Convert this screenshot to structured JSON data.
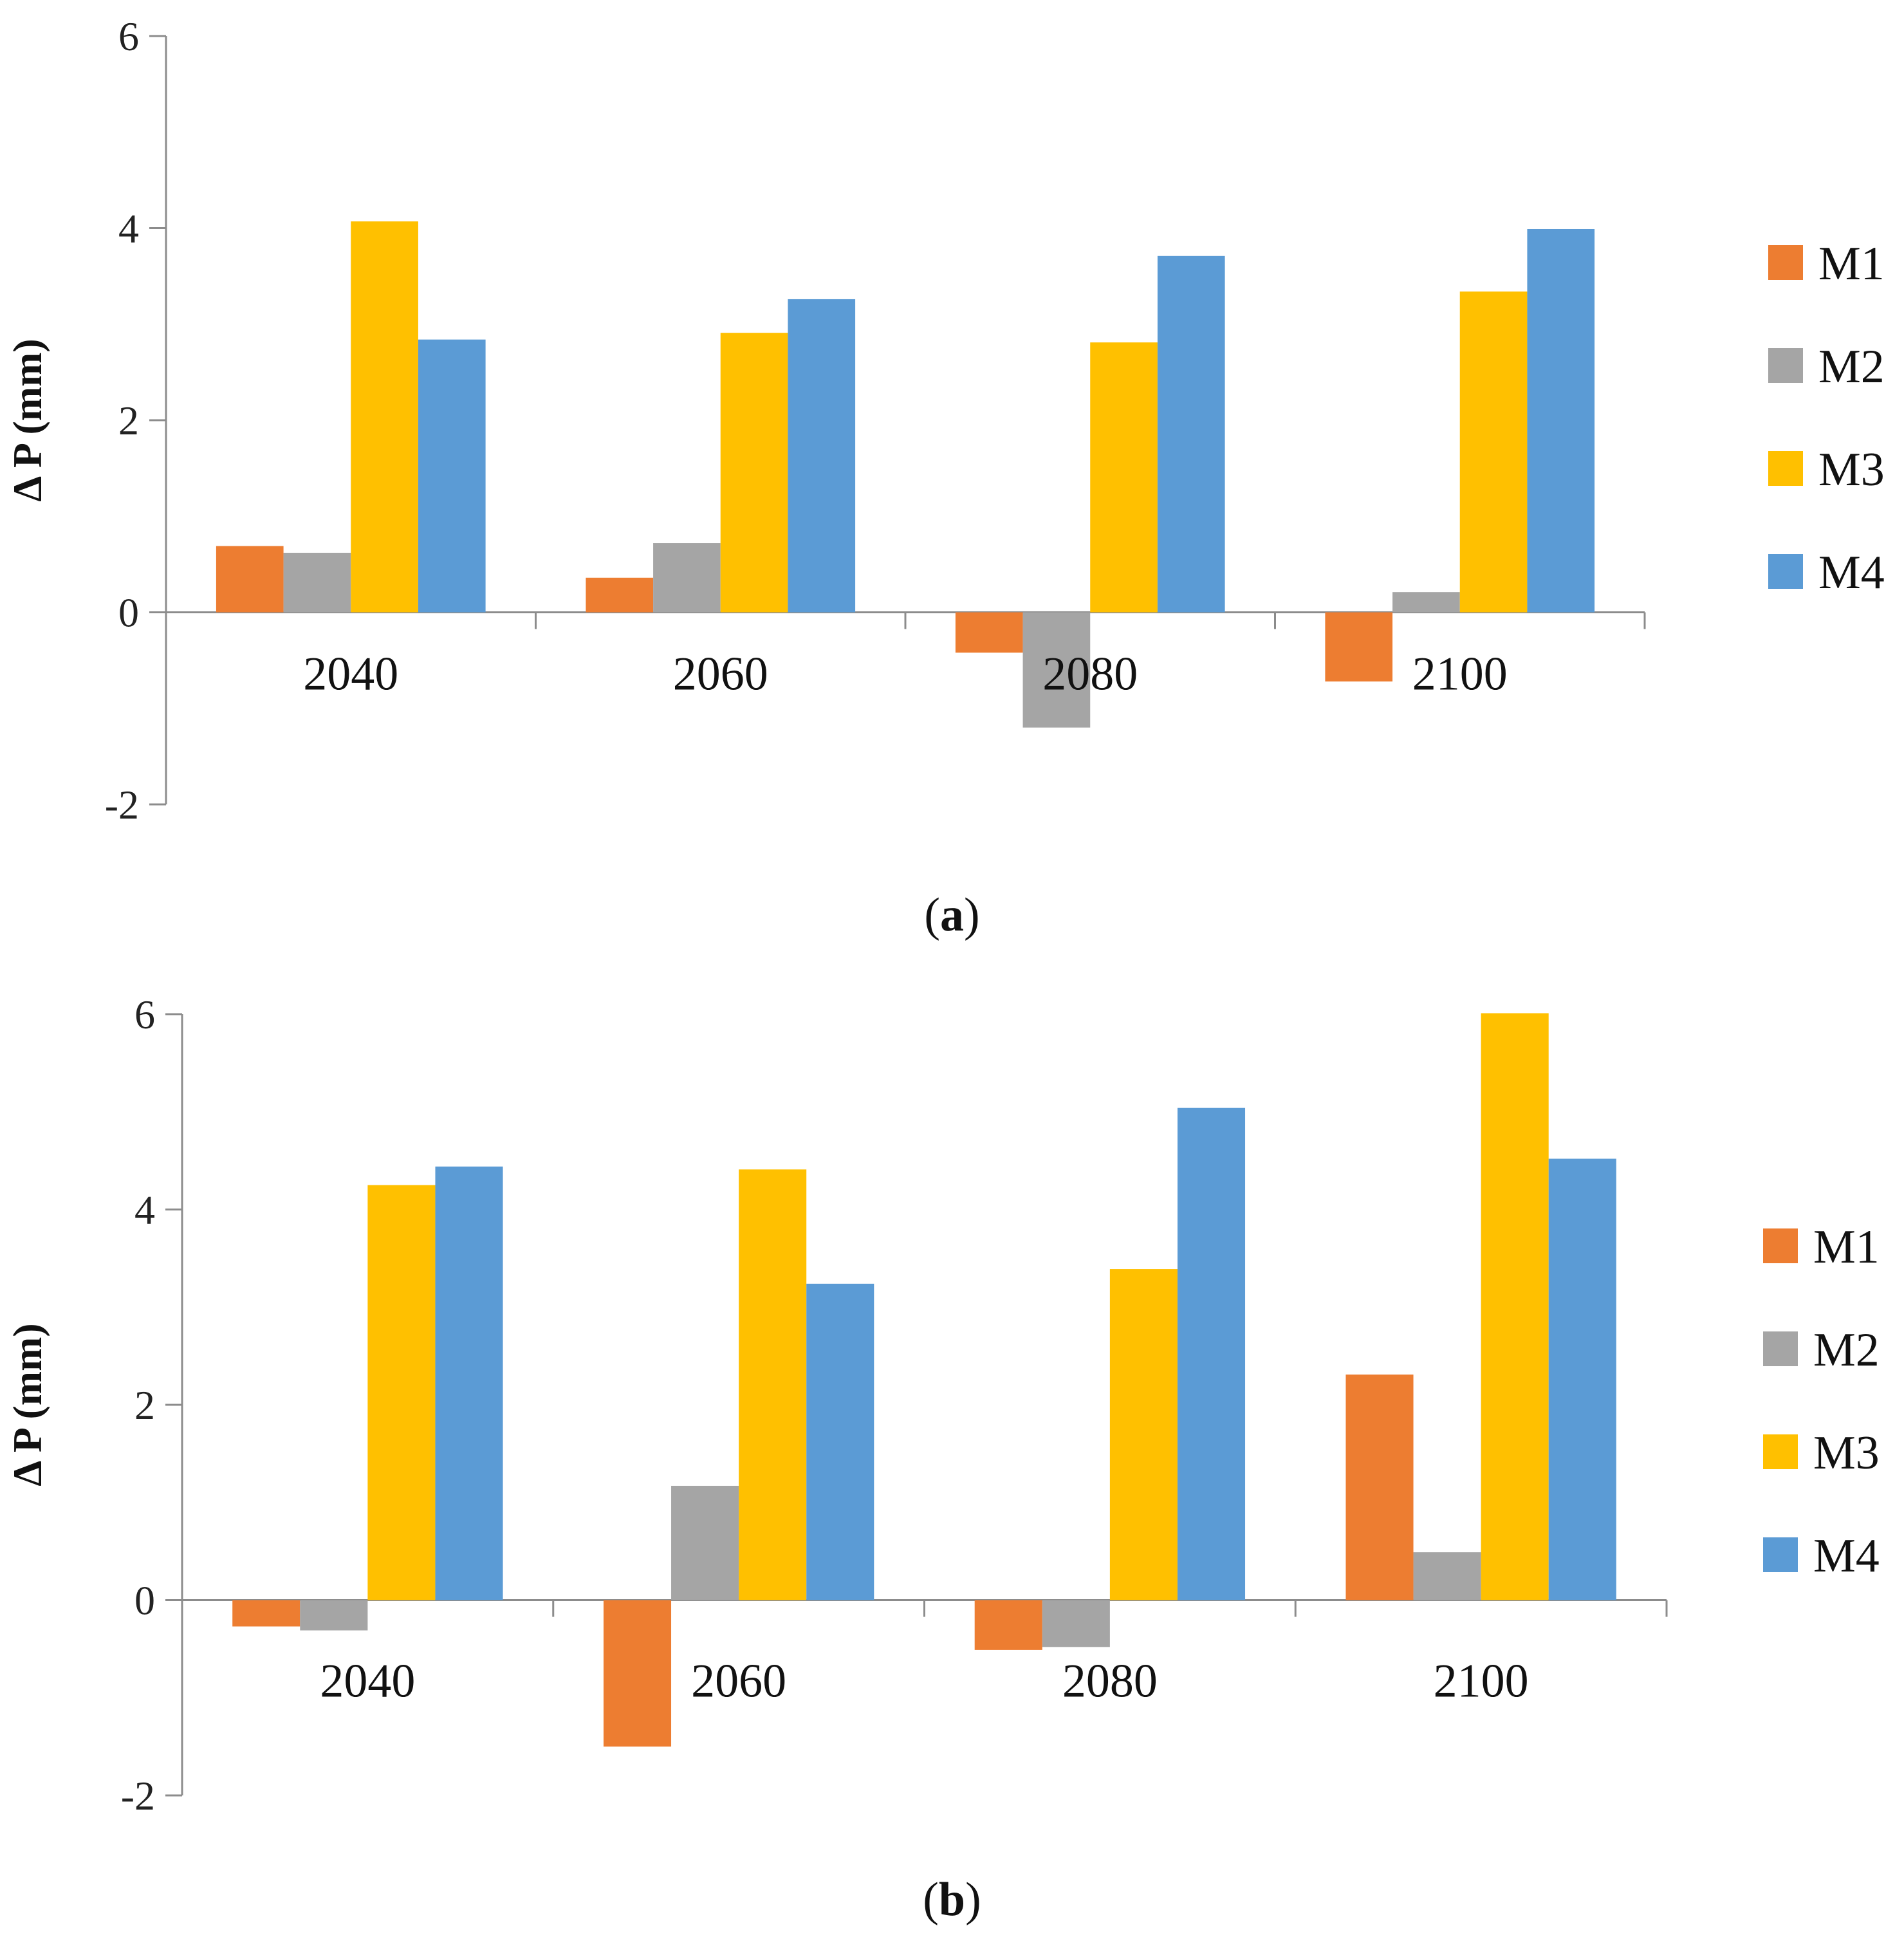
{
  "chart_data": [
    {
      "panel_label": "a",
      "type": "bar",
      "ylabel": "Δ P (mm)",
      "xlabel": "",
      "ylim": [
        -2,
        6
      ],
      "yticks": [
        -2,
        0,
        2,
        4,
        6
      ],
      "categories": [
        "2040",
        "2060",
        "2080",
        "2100"
      ],
      "series": [
        {
          "name": "M1",
          "color": "#ED7D31",
          "values": [
            0.69,
            0.36,
            -0.42,
            -0.72
          ]
        },
        {
          "name": "M2",
          "color": "#A5A5A5",
          "values": [
            0.62,
            0.72,
            -1.2,
            0.21
          ]
        },
        {
          "name": "M3",
          "color": "#FFC000",
          "values": [
            4.07,
            2.91,
            2.81,
            3.34
          ]
        },
        {
          "name": "M4",
          "color": "#5B9BD5",
          "values": [
            2.84,
            3.26,
            3.71,
            3.99
          ]
        }
      ],
      "legend_position": "right",
      "grid": false
    },
    {
      "panel_label": "b",
      "type": "bar",
      "ylabel": "Δ P (mm)",
      "xlabel": "",
      "ylim": [
        -2,
        6
      ],
      "yticks": [
        -2,
        0,
        2,
        4,
        6
      ],
      "categories": [
        "2040",
        "2060",
        "2080",
        "2100"
      ],
      "series": [
        {
          "name": "M1",
          "color": "#ED7D31",
          "values": [
            -0.27,
            -1.5,
            -0.51,
            2.31
          ]
        },
        {
          "name": "M2",
          "color": "#A5A5A5",
          "values": [
            -0.31,
            1.17,
            -0.48,
            0.49
          ]
        },
        {
          "name": "M3",
          "color": "#FFC000",
          "values": [
            4.25,
            4.41,
            3.39,
            6.01
          ]
        },
        {
          "name": "M4",
          "color": "#5B9BD5",
          "values": [
            4.44,
            3.24,
            5.04,
            4.52
          ]
        }
      ],
      "legend_position": "right",
      "grid": false
    }
  ]
}
